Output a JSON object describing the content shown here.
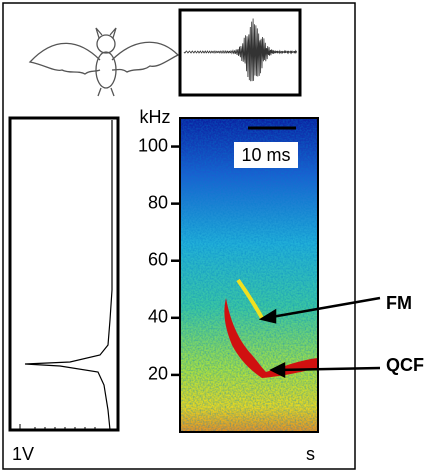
{
  "chart_data": {
    "type": "spectrogram",
    "ylabel": "kHz",
    "ylim": [
      0,
      110
    ],
    "yticks": [
      20,
      40,
      60,
      80,
      100
    ],
    "annotations": {
      "scale_bar": "10 ms",
      "fm": "FM",
      "qcf": "QCF",
      "amplitude": "1V",
      "time": "s"
    }
  }
}
